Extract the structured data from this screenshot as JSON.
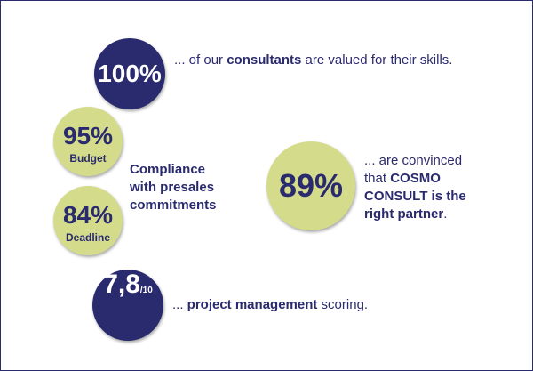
{
  "colors": {
    "dark": "#2a2a6e",
    "light": "#d4dc8c",
    "frame": "#2a2a6e"
  },
  "stat_consultants": {
    "value": "100%",
    "text_prefix": "... of our ",
    "text_bold": "consultants",
    "text_suffix": " are valued for their skills."
  },
  "stat_budget": {
    "value": "95%",
    "label": "Budget"
  },
  "stat_deadline": {
    "value": "84%",
    "label": "Deadline"
  },
  "compliance_label": "Compliance with presales commitments",
  "stat_partner": {
    "value": "89%",
    "text_prefix": "... are convinced that ",
    "text_bold": "COSMO CONSULT is the right partner",
    "text_suffix": "."
  },
  "stat_pm": {
    "value": "7,8",
    "suffix": "/10",
    "text_prefix": "... ",
    "text_bold": "project management",
    "text_suffix": " scoring."
  }
}
